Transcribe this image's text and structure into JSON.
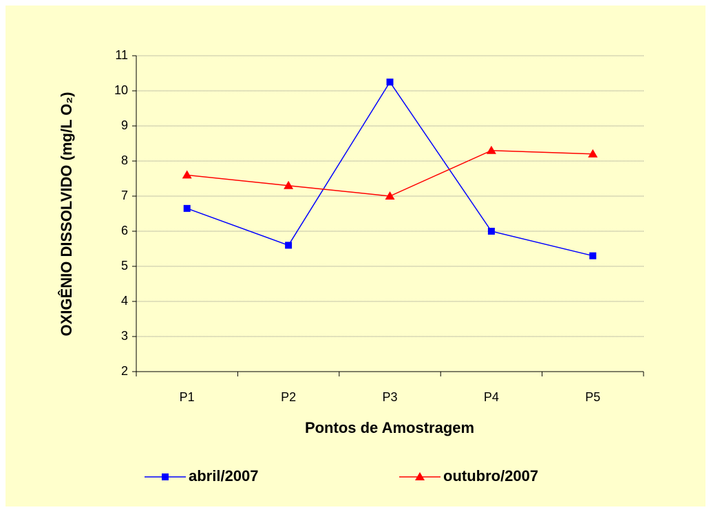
{
  "chart_data": {
    "type": "line",
    "y_label": "OXIGÊNIO DISSOLVIDO (mg/L O₂)",
    "x_label": "Pontos de Amostragem",
    "categories": [
      "P1",
      "P2",
      "P3",
      "P4",
      "P5"
    ],
    "series": [
      {
        "name": "abril/2007",
        "color": "#0000ff",
        "marker": "square",
        "values": [
          6.65,
          5.6,
          10.25,
          6.0,
          5.3
        ]
      },
      {
        "name": "outubro/2007",
        "color": "#ff0000",
        "marker": "triangle",
        "values": [
          7.6,
          7.3,
          7.0,
          8.3,
          8.2
        ]
      }
    ],
    "ylim": [
      2,
      11
    ],
    "yticks": [
      2,
      3,
      4,
      5,
      6,
      7,
      8,
      9,
      10,
      11
    ],
    "grid": true,
    "legend": "bottom"
  }
}
